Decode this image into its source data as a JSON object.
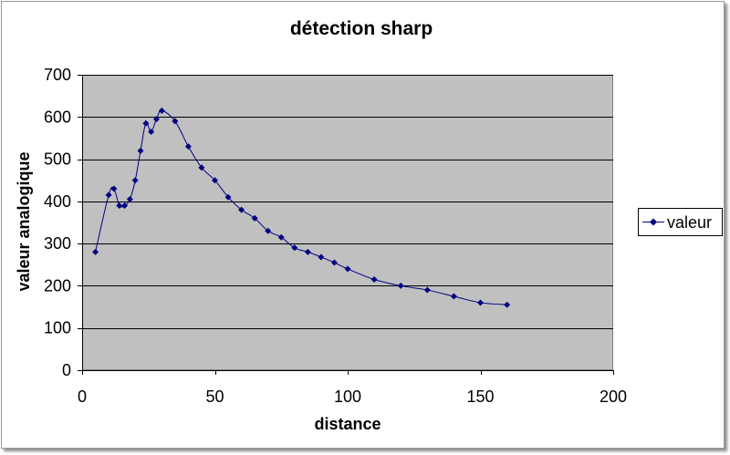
{
  "chart_data": {
    "type": "line",
    "title": "détection sharp",
    "xlabel": "distance",
    "ylabel": "valeur analogique",
    "xlim": [
      0,
      200
    ],
    "ylim": [
      0,
      700
    ],
    "xticks": [
      0,
      50,
      100,
      150,
      200
    ],
    "yticks": [
      0,
      100,
      200,
      300,
      400,
      500,
      600,
      700
    ],
    "grid": "horizontal",
    "legend_position": "right",
    "plot_background": "#C0C0C0",
    "gridline_color": "#000000",
    "series": [
      {
        "name": "valeur",
        "color": "#000080",
        "marker": "diamond",
        "smooth": true,
        "x": [
          5,
          10,
          12,
          14,
          16,
          18,
          20,
          22,
          24,
          26,
          28,
          30,
          35,
          40,
          45,
          50,
          55,
          60,
          65,
          70,
          75,
          80,
          85,
          90,
          95,
          100,
          110,
          120,
          130,
          140,
          150,
          160
        ],
        "y": [
          280,
          415,
          430,
          390,
          390,
          405,
          450,
          520,
          585,
          565,
          595,
          615,
          590,
          530,
          480,
          450,
          410,
          380,
          360,
          330,
          315,
          290,
          280,
          268,
          255,
          240,
          215,
          200,
          190,
          175,
          160,
          155
        ]
      }
    ]
  }
}
